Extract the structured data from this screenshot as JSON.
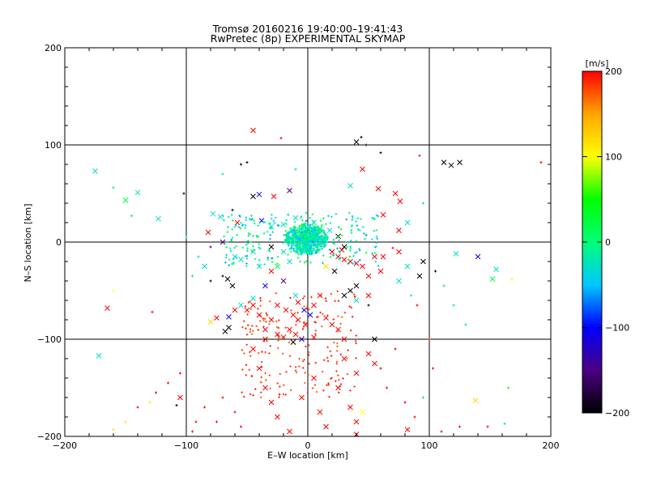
{
  "chart_data": {
    "type": "scatter",
    "title": "Tromsø 20160216 19:40:00–19:41:43",
    "subtitle": "RwPretec (8p) EXPERIMENTAL SKYMAP",
    "xlabel": "E–W location [km]",
    "ylabel": "N–S location [km]",
    "xlim": [
      -200,
      200
    ],
    "ylim": [
      -200,
      200
    ],
    "xticks": [
      "−200",
      "−100",
      "0",
      "100",
      "200"
    ],
    "yticks": [
      "−200",
      "−100",
      "0",
      "100",
      "200"
    ],
    "grid": true,
    "colorbar": {
      "label": "[m/s]",
      "range": [
        -200,
        200
      ],
      "ticks": [
        "200",
        "100",
        "0",
        "−100",
        "−200"
      ],
      "colormap": [
        "#000000",
        "#4b0082",
        "#0000ff",
        "#00c8ff",
        "#00ff78",
        "#00ff00",
        "#ffff00",
        "#ffa500",
        "#ff0000"
      ]
    },
    "points_note": "approximate, one entry per visible marker cluster: [x_km, y_km, velocity_m_s, marker]",
    "points": [
      [
        -45,
        115,
        200,
        "x"
      ],
      [
        -22,
        107,
        200,
        "+"
      ],
      [
        -175,
        73,
        -30,
        "x"
      ],
      [
        -140,
        51,
        -30,
        "x"
      ],
      [
        -150,
        43,
        20,
        "x"
      ],
      [
        -123,
        24,
        -30,
        "x"
      ],
      [
        -102,
        50,
        -200,
        "+"
      ],
      [
        -45,
        47,
        -200,
        "x"
      ],
      [
        -40,
        49,
        -110,
        "x"
      ],
      [
        -28,
        47,
        200,
        "x"
      ],
      [
        -15,
        53,
        -150,
        "x"
      ],
      [
        -78,
        29,
        -30,
        "x"
      ],
      [
        -82,
        10,
        200,
        "x"
      ],
      [
        -72,
        26,
        -30,
        "x"
      ],
      [
        -62,
        33,
        -200,
        "+"
      ],
      [
        -58,
        20,
        200,
        "x"
      ],
      [
        -38,
        22,
        -100,
        "x"
      ],
      [
        -30,
        16,
        -30,
        "x"
      ],
      [
        -20,
        18,
        -30,
        "x"
      ],
      [
        -10,
        25,
        -30,
        "x"
      ],
      [
        -5,
        15,
        0,
        "x"
      ],
      [
        0,
        5,
        0,
        "x"
      ],
      [
        3,
        -2,
        -20,
        "x"
      ],
      [
        8,
        8,
        10,
        "x"
      ],
      [
        -8,
        -5,
        -10,
        "x"
      ],
      [
        5,
        20,
        -40,
        "x"
      ],
      [
        12,
        3,
        0,
        "x"
      ],
      [
        -12,
        8,
        -30,
        "x"
      ],
      [
        18,
        12,
        -40,
        "x"
      ],
      [
        20,
        -10,
        200,
        "x"
      ],
      [
        25,
        -15,
        200,
        "x"
      ],
      [
        30,
        -18,
        200,
        "x"
      ],
      [
        35,
        -20,
        200,
        "x"
      ],
      [
        40,
        -22,
        200,
        "x"
      ],
      [
        28,
        -8,
        200,
        "x"
      ],
      [
        15,
        -25,
        120,
        "x"
      ],
      [
        22,
        -30,
        -200,
        "x"
      ],
      [
        30,
        -5,
        -200,
        "x"
      ],
      [
        25,
        6,
        -200,
        "x"
      ],
      [
        45,
        -25,
        200,
        "x"
      ],
      [
        50,
        -35,
        200,
        "x"
      ],
      [
        60,
        -30,
        200,
        "x"
      ],
      [
        40,
        103,
        -200,
        "x"
      ],
      [
        44,
        108,
        -200,
        "+"
      ],
      [
        48,
        100,
        -200,
        "+"
      ],
      [
        60,
        92,
        -200,
        "+"
      ],
      [
        92,
        89,
        200,
        "+"
      ],
      [
        112,
        82,
        -200,
        "x"
      ],
      [
        118,
        79,
        -200,
        "x"
      ],
      [
        125,
        82,
        -200,
        "x"
      ],
      [
        122,
        -12,
        -30,
        "x"
      ],
      [
        140,
        -15,
        -110,
        "x"
      ],
      [
        155,
        -28,
        -30,
        "x"
      ],
      [
        152,
        -38,
        20,
        "x"
      ],
      [
        168,
        -38,
        100,
        "+"
      ],
      [
        192,
        82,
        200,
        "+"
      ],
      [
        95,
        -20,
        -200,
        "x"
      ],
      [
        82,
        -25,
        -30,
        "x"
      ],
      [
        75,
        -40,
        -30,
        "x"
      ],
      [
        92,
        -35,
        -200,
        "x"
      ],
      [
        105,
        -30,
        -200,
        "+"
      ],
      [
        112,
        -45,
        -30,
        "+"
      ],
      [
        85,
        -55,
        -30,
        "+"
      ],
      [
        75,
        -10,
        200,
        "x"
      ],
      [
        70,
        -6,
        200,
        "+"
      ],
      [
        62,
        -15,
        200,
        "x"
      ],
      [
        55,
        -15,
        200,
        "x"
      ],
      [
        50,
        -55,
        200,
        "x"
      ],
      [
        40,
        -45,
        -200,
        "x"
      ],
      [
        35,
        -50,
        -200,
        "x"
      ],
      [
        30,
        -55,
        -200,
        "x"
      ],
      [
        40,
        -60,
        -30,
        "x"
      ],
      [
        50,
        -65,
        -200,
        "+"
      ],
      [
        -30,
        -30,
        200,
        "x"
      ],
      [
        -20,
        -40,
        -150,
        "x"
      ],
      [
        -10,
        -55,
        -30,
        "x"
      ],
      [
        -35,
        -45,
        -110,
        "x"
      ],
      [
        -45,
        -58,
        -30,
        "x"
      ],
      [
        -55,
        -65,
        -30,
        "x"
      ],
      [
        -60,
        -70,
        200,
        "x"
      ],
      [
        -65,
        -88,
        -200,
        "x"
      ],
      [
        -68,
        -92,
        -200,
        "x"
      ],
      [
        -65,
        -77,
        -110,
        "x"
      ],
      [
        -75,
        -78,
        200,
        "x"
      ],
      [
        -80,
        -82,
        120,
        "x"
      ],
      [
        -62,
        -45,
        -200,
        "x"
      ],
      [
        -66,
        -38,
        -200,
        "x"
      ],
      [
        -70,
        -35,
        -200,
        "+"
      ],
      [
        -25,
        -65,
        200,
        "x"
      ],
      [
        -18,
        -70,
        200,
        "x"
      ],
      [
        -12,
        -75,
        200,
        "x"
      ],
      [
        -8,
        -80,
        200,
        "x"
      ],
      [
        -2,
        -85,
        200,
        "x"
      ],
      [
        -15,
        -90,
        200,
        "x"
      ],
      [
        -10,
        -95,
        200,
        "x"
      ],
      [
        -20,
        -98,
        200,
        "x"
      ],
      [
        -12,
        -103,
        -200,
        "x"
      ],
      [
        -5,
        -100,
        -110,
        "x"
      ],
      [
        5,
        -98,
        200,
        "x"
      ],
      [
        -3,
        -70,
        -110,
        "x"
      ],
      [
        2,
        -75,
        -110,
        "x"
      ],
      [
        -8,
        -62,
        200,
        "x"
      ],
      [
        10,
        -55,
        200,
        "x"
      ],
      [
        5,
        -65,
        200,
        "x"
      ],
      [
        15,
        -78,
        200,
        "x"
      ],
      [
        20,
        -85,
        200,
        "x"
      ],
      [
        25,
        -90,
        200,
        "x"
      ],
      [
        30,
        -100,
        200,
        "x"
      ],
      [
        -30,
        -80,
        200,
        "x"
      ],
      [
        -35,
        -90,
        200,
        "x"
      ],
      [
        -40,
        -75,
        200,
        "x"
      ],
      [
        -45,
        -65,
        200,
        "x"
      ],
      [
        -50,
        -70,
        200,
        "x"
      ],
      [
        -25,
        -95,
        200,
        "x"
      ],
      [
        -35,
        -100,
        200,
        "x"
      ],
      [
        -165,
        -68,
        200,
        "x"
      ],
      [
        -160,
        -50,
        100,
        "+"
      ],
      [
        -128,
        -72,
        200,
        "+"
      ],
      [
        -172,
        -117,
        -30,
        "x"
      ],
      [
        -105,
        -135,
        200,
        "+"
      ],
      [
        -115,
        -145,
        200,
        "+"
      ],
      [
        -108,
        -168,
        -200,
        "+"
      ],
      [
        -125,
        -155,
        200,
        "+"
      ],
      [
        -130,
        -165,
        120,
        "+"
      ],
      [
        -140,
        -170,
        200,
        "+"
      ],
      [
        -150,
        -185,
        120,
        "+"
      ],
      [
        -160,
        -193,
        120,
        "+"
      ],
      [
        -85,
        -170,
        200,
        "+"
      ],
      [
        -75,
        -185,
        200,
        "+"
      ],
      [
        -70,
        -160,
        200,
        "+"
      ],
      [
        -60,
        -175,
        200,
        "+"
      ],
      [
        -55,
        -190,
        200,
        "+"
      ],
      [
        -45,
        -110,
        200,
        "x"
      ],
      [
        -40,
        -130,
        200,
        "x"
      ],
      [
        -35,
        -150,
        200,
        "x"
      ],
      [
        -30,
        -165,
        200,
        "x"
      ],
      [
        -25,
        -180,
        200,
        "x"
      ],
      [
        -15,
        -195,
        200,
        "x"
      ],
      [
        -5,
        -160,
        200,
        "x"
      ],
      [
        5,
        -140,
        200,
        "x"
      ],
      [
        10,
        -175,
        200,
        "x"
      ],
      [
        15,
        -190,
        200,
        "x"
      ],
      [
        25,
        -150,
        200,
        "x"
      ],
      [
        35,
        -170,
        200,
        "x"
      ],
      [
        40,
        -185,
        200,
        "x"
      ],
      [
        45,
        -175,
        100,
        "x"
      ],
      [
        40,
        -198,
        200,
        "x"
      ],
      [
        30,
        -120,
        200,
        "x"
      ],
      [
        40,
        -135,
        200,
        "x"
      ],
      [
        50,
        -115,
        200,
        "x"
      ],
      [
        55,
        -125,
        200,
        "x"
      ],
      [
        55,
        -100,
        -200,
        "x"
      ],
      [
        60,
        -130,
        200,
        "+"
      ],
      [
        65,
        -150,
        200,
        "+"
      ],
      [
        72,
        -110,
        200,
        "+"
      ],
      [
        80,
        -165,
        200,
        "+"
      ],
      [
        88,
        -180,
        200,
        "+"
      ],
      [
        82,
        -193,
        200,
        "x"
      ],
      [
        95,
        -160,
        -30,
        "+"
      ],
      [
        103,
        -130,
        200,
        "+"
      ],
      [
        110,
        -195,
        200,
        "+"
      ],
      [
        125,
        -190,
        200,
        "+"
      ],
      [
        138,
        -163,
        120,
        "x"
      ],
      [
        148,
        -190,
        200,
        "+"
      ],
      [
        165,
        -150,
        20,
        "+"
      ],
      [
        162,
        -187,
        -30,
        "+"
      ],
      [
        -95,
        -195,
        200,
        "+"
      ],
      [
        -105,
        -160,
        200,
        "x"
      ],
      [
        -92,
        -185,
        200,
        "+"
      ],
      [
        45,
        75,
        200,
        "x"
      ],
      [
        58,
        55,
        200,
        "x"
      ],
      [
        72,
        50,
        200,
        "x"
      ],
      [
        76,
        42,
        200,
        "x"
      ],
      [
        95,
        40,
        -30,
        "+"
      ],
      [
        82,
        20,
        -30,
        "x"
      ],
      [
        75,
        12,
        200,
        "x"
      ],
      [
        62,
        28,
        200,
        "x"
      ],
      [
        35,
        58,
        -30,
        "x"
      ],
      [
        -10,
        75,
        -30,
        "+"
      ],
      [
        -50,
        82,
        -200,
        "+"
      ],
      [
        -55,
        80,
        -200,
        "+"
      ],
      [
        -70,
        70,
        -30,
        "+"
      ],
      [
        -100,
        5,
        -30,
        "+"
      ],
      [
        -90,
        -15,
        -30,
        "+"
      ],
      [
        -85,
        -25,
        -30,
        "x"
      ],
      [
        -95,
        -35,
        -30,
        "+"
      ],
      [
        -80,
        -40,
        -200,
        "+"
      ],
      [
        -145,
        27,
        -30,
        "+"
      ],
      [
        -160,
        56,
        -30,
        "+"
      ],
      [
        -80,
        -5,
        -150,
        "+"
      ],
      [
        -45,
        -10,
        -30,
        "x"
      ],
      [
        -55,
        -18,
        -30,
        "x"
      ],
      [
        -40,
        -25,
        -30,
        "x"
      ],
      [
        -25,
        -25,
        20,
        "x"
      ],
      [
        -15,
        -20,
        -30,
        "x"
      ],
      [
        -60,
        -15,
        -30,
        "x"
      ],
      [
        -70,
        0,
        -150,
        "x"
      ],
      [
        -30,
        -5,
        -200,
        "x"
      ],
      [
        -20,
        -10,
        -30,
        "x"
      ],
      [
        90,
        -65,
        200,
        "+"
      ],
      [
        100,
        -100,
        200,
        "+"
      ],
      [
        120,
        -65,
        -30,
        "+"
      ],
      [
        130,
        -85,
        -30,
        "+"
      ]
    ]
  }
}
